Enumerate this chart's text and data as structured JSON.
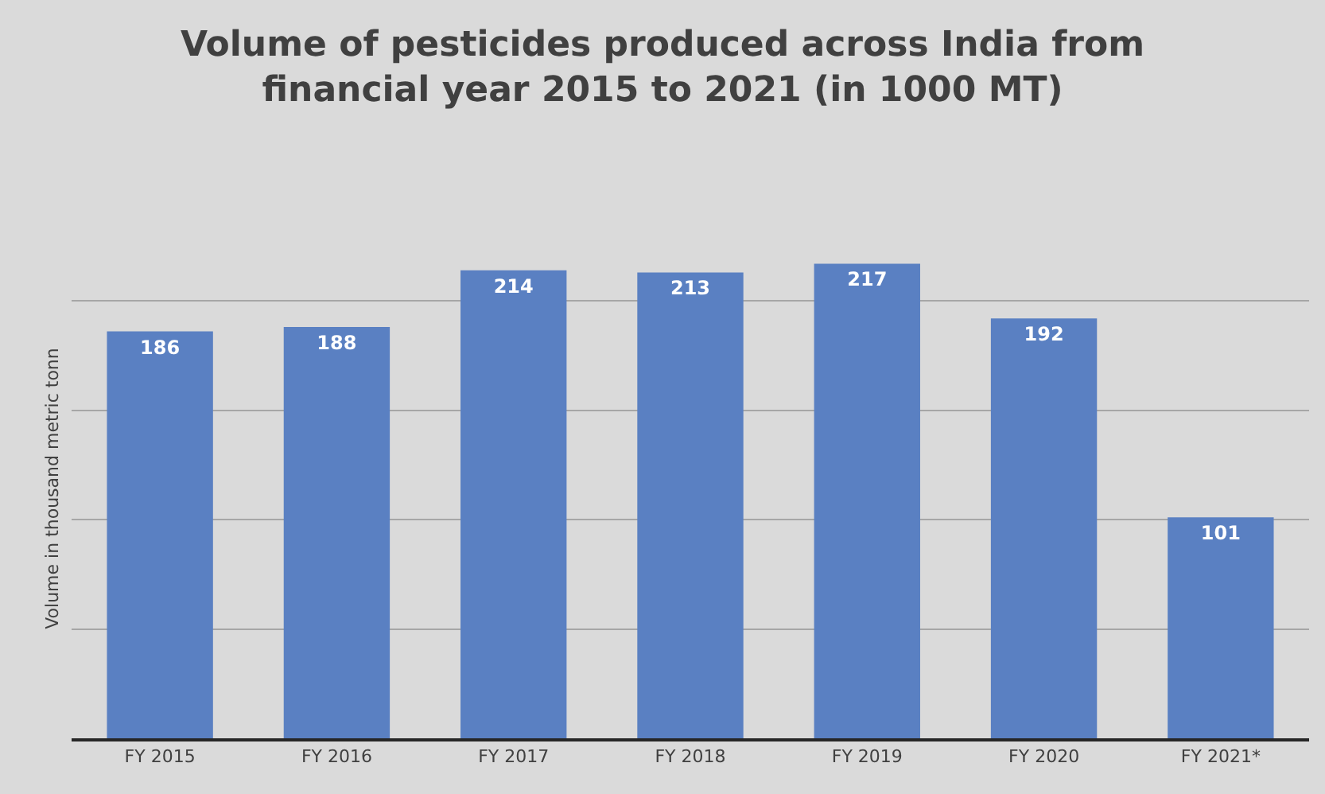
{
  "chart_data": {
    "type": "bar",
    "title": "Volume of pesticides produced across India from financial year 2015 to 2021 (in 1000 MT)",
    "ylabel": "Volume in thousand metric tonn",
    "categories": [
      "FY 2015",
      "FY 2016",
      "FY 2017",
      "FY 2018",
      "FY 2019",
      "FY 2020",
      "FY 2021*"
    ],
    "values": [
      186,
      188,
      214,
      213,
      217,
      192,
      101
    ],
    "color": "#5a80c2",
    "tick_labels": "x",
    "grid": "y",
    "data_labels": true
  }
}
